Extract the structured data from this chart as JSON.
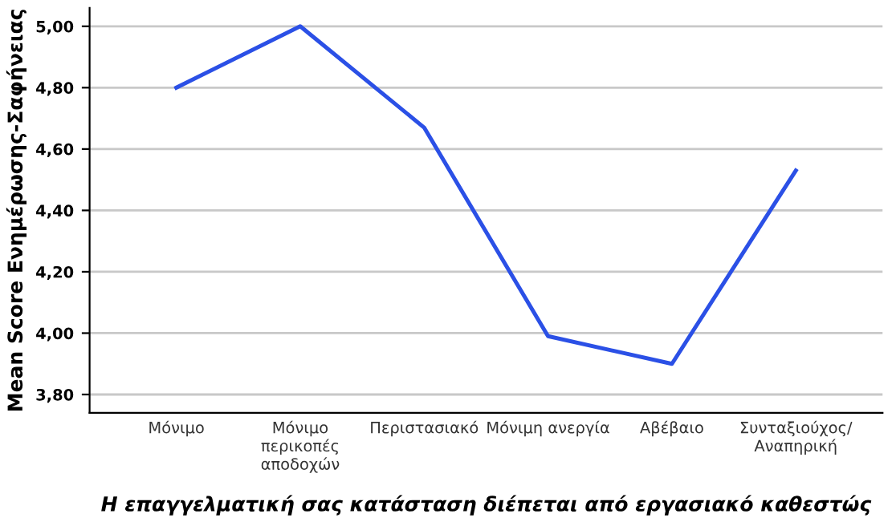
{
  "chart_data": {
    "type": "line",
    "xlabel": "Η επαγγελματική σας κατάσταση διέπεται από εργασιακό καθεστώς",
    "ylabel": "Mean Score Ενημέρωσης-Σαφήνειας",
    "categories": [
      "Μόνιμο",
      "Μόνιμο\nπερικοπές\nαποδοχών",
      "Περιστασιακό",
      "Μόνιμη ανεργία",
      "Αβέβαιο",
      "Συνταξιούχος/\nΑναπηρική"
    ],
    "series": [
      {
        "color": "#2b50e6",
        "values": [
          4.8,
          5.0,
          4.67,
          3.99,
          3.9,
          4.53
        ]
      }
    ],
    "ylim": [
      3.74,
      5.06
    ],
    "yticks": [
      {
        "value": 3.8,
        "label": "3,80"
      },
      {
        "value": 4.0,
        "label": "4,00"
      },
      {
        "value": 4.2,
        "label": "4,20"
      },
      {
        "value": 4.4,
        "label": "4,40"
      },
      {
        "value": 4.6,
        "label": "4,60"
      },
      {
        "value": 4.8,
        "label": "4,80"
      },
      {
        "value": 5.0,
        "label": "5,00"
      }
    ],
    "grid": "y",
    "marker": "none",
    "line_style": "solid"
  }
}
